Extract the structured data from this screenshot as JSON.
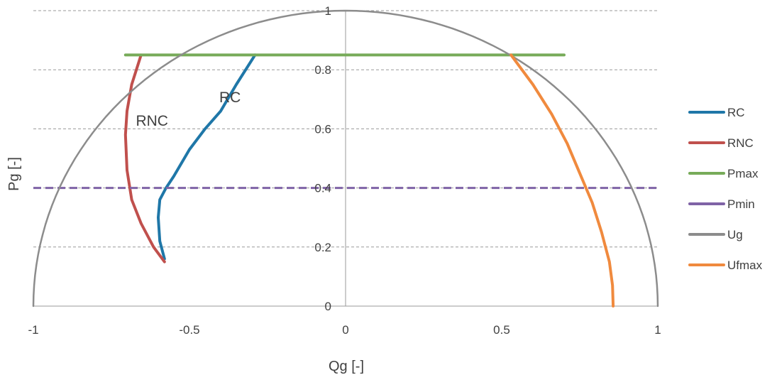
{
  "chart_data": {
    "type": "line",
    "xlabel": "Qg [-]",
    "ylabel": "Pg [-]",
    "xlim": [
      -1,
      1
    ],
    "ylim": [
      0,
      1
    ],
    "x_ticks": [
      "-1",
      "-0.5",
      "0",
      "0.5",
      "1"
    ],
    "y_ticks": [
      "0",
      "0.2",
      "0.4",
      "0.6",
      "0.8",
      "1"
    ],
    "grid": "horizontal-dashed",
    "legend_position": "right",
    "annotations": [
      {
        "text": "RC",
        "x": -0.37,
        "y": 0.69
      },
      {
        "text": "RNC",
        "x": -0.62,
        "y": 0.61
      }
    ],
    "series": [
      {
        "name": "RC",
        "color": "#1F77A8",
        "points": [
          [
            -0.58,
            0.16
          ],
          [
            -0.595,
            0.22
          ],
          [
            -0.6,
            0.3
          ],
          [
            -0.595,
            0.36
          ],
          [
            -0.575,
            0.4
          ],
          [
            -0.55,
            0.44
          ],
          [
            -0.5,
            0.53
          ],
          [
            -0.45,
            0.6
          ],
          [
            -0.4,
            0.66
          ],
          [
            -0.35,
            0.75
          ],
          [
            -0.29,
            0.85
          ]
        ]
      },
      {
        "name": "RNC",
        "color": "#C0504D",
        "points": [
          [
            -0.58,
            0.15
          ],
          [
            -0.615,
            0.2
          ],
          [
            -0.655,
            0.28
          ],
          [
            -0.685,
            0.36
          ],
          [
            -0.7,
            0.46
          ],
          [
            -0.705,
            0.58
          ],
          [
            -0.7,
            0.66
          ],
          [
            -0.685,
            0.75
          ],
          [
            -0.655,
            0.85
          ]
        ]
      },
      {
        "name": "Pmax",
        "color": "#77AB59",
        "points": [
          [
            -0.705,
            0.85
          ],
          [
            0.7,
            0.85
          ]
        ]
      },
      {
        "name": "Pmin",
        "color": "#7F63A6",
        "points": [
          [
            -1,
            0.4
          ],
          [
            1,
            0.4
          ]
        ]
      },
      {
        "name": "Ug",
        "color": "#8C8C8C",
        "points": []
      },
      {
        "name": "Ufmax",
        "color": "#F08A3E",
        "points": [
          [
            0.53,
            0.85
          ],
          [
            0.6,
            0.75
          ],
          [
            0.66,
            0.65
          ],
          [
            0.71,
            0.55
          ],
          [
            0.75,
            0.45
          ],
          [
            0.79,
            0.35
          ],
          [
            0.82,
            0.25
          ],
          [
            0.845,
            0.15
          ],
          [
            0.855,
            0.07
          ],
          [
            0.857,
            0.0
          ]
        ]
      }
    ]
  }
}
